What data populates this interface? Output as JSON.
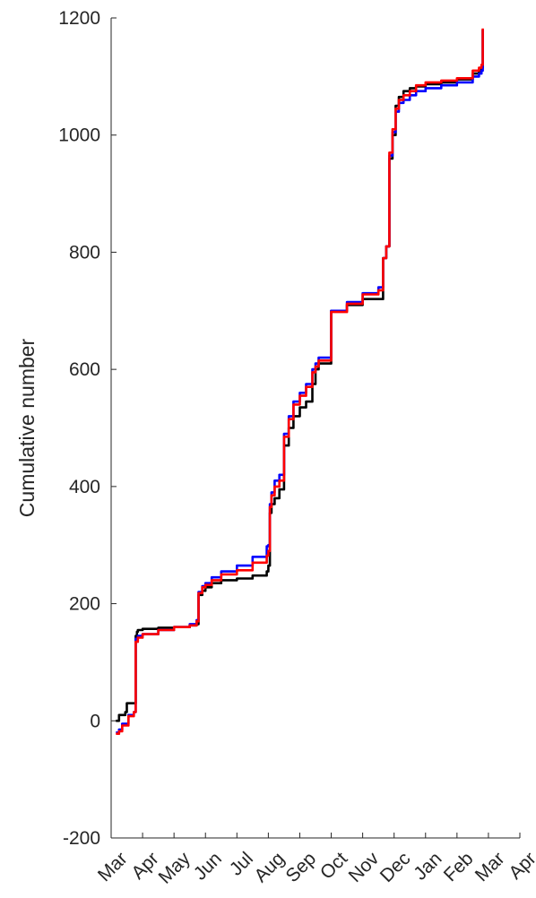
{
  "chart_data": {
    "type": "line",
    "title": "",
    "xlabel": "",
    "ylabel": "Cumulative number",
    "ylim": [
      -200,
      1200
    ],
    "yticks": [
      "-200",
      "0",
      "200",
      "400",
      "600",
      "800",
      "1000",
      "1200"
    ],
    "x_tick_labels": [
      "Mar",
      "Apr",
      "May",
      "Jun",
      "Jul",
      "Aug",
      "Sep",
      "Oct",
      "Nov",
      "Dec",
      "Jan",
      "Feb",
      "Mar",
      "Apr"
    ],
    "grid": false,
    "x_unit_note": "x values are month index (0 = Mar of first year, 13 = Apr of following year)",
    "series": [
      {
        "color": "#000000",
        "x": [
          0.15,
          0.25,
          0.45,
          0.5,
          0.6,
          0.72,
          0.78,
          0.82,
          0.85,
          1.0,
          1.5,
          2.0,
          2.5,
          2.72,
          2.78,
          2.9,
          3.0,
          3.2,
          3.5,
          4.0,
          4.5,
          4.95,
          5.0,
          5.05,
          5.1,
          5.2,
          5.35,
          5.5,
          5.65,
          5.8,
          6.0,
          6.2,
          6.4,
          6.5,
          6.6,
          7.0,
          7.5,
          8.0,
          8.5,
          8.65,
          8.75,
          8.85,
          8.95,
          9.05,
          9.15,
          9.3,
          9.5,
          9.7,
          10.0,
          10.5,
          11.0,
          11.5,
          11.7,
          11.78,
          11.82
        ],
        "y": [
          0,
          10,
          15,
          30,
          30,
          30,
          145,
          152,
          155,
          157,
          159,
          160,
          163,
          165,
          215,
          222,
          228,
          235,
          240,
          243,
          248,
          255,
          265,
          355,
          370,
          380,
          395,
          470,
          500,
          520,
          535,
          545,
          575,
          600,
          610,
          700,
          710,
          720,
          720,
          790,
          810,
          960,
          1000,
          1050,
          1065,
          1075,
          1080,
          1083,
          1087,
          1090,
          1095,
          1105,
          1110,
          1115,
          1180
        ]
      },
      {
        "color": "#0000ff",
        "x": [
          0.15,
          0.25,
          0.35,
          0.55,
          0.72,
          0.78,
          0.85,
          1.0,
          1.5,
          2.0,
          2.5,
          2.72,
          2.78,
          2.9,
          3.0,
          3.2,
          3.5,
          4.0,
          4.5,
          4.95,
          5.0,
          5.05,
          5.1,
          5.2,
          5.35,
          5.5,
          5.65,
          5.8,
          6.0,
          6.2,
          6.4,
          6.5,
          6.6,
          7.0,
          7.5,
          8.0,
          8.5,
          8.65,
          8.75,
          8.85,
          8.95,
          9.05,
          9.15,
          9.3,
          9.5,
          9.7,
          10.0,
          10.5,
          11.0,
          11.5,
          11.7,
          11.78,
          11.82
        ],
        "y": [
          -20,
          -15,
          -5,
          10,
          15,
          140,
          145,
          148,
          155,
          160,
          165,
          172,
          220,
          230,
          235,
          245,
          255,
          265,
          280,
          298,
          300,
          370,
          390,
          410,
          420,
          490,
          520,
          545,
          560,
          575,
          600,
          610,
          620,
          700,
          715,
          730,
          740,
          790,
          810,
          965,
          1005,
          1040,
          1055,
          1060,
          1068,
          1075,
          1080,
          1085,
          1090,
          1100,
          1105,
          1110,
          1180
        ]
      },
      {
        "color": "#ff0000",
        "x": [
          0.15,
          0.25,
          0.35,
          0.55,
          0.72,
          0.78,
          0.85,
          1.0,
          1.5,
          2.0,
          2.5,
          2.72,
          2.78,
          2.9,
          3.0,
          3.2,
          3.5,
          4.0,
          4.5,
          4.95,
          5.0,
          5.05,
          5.1,
          5.2,
          5.35,
          5.5,
          5.65,
          5.8,
          6.0,
          6.2,
          6.4,
          6.5,
          6.6,
          7.0,
          7.5,
          8.0,
          8.5,
          8.65,
          8.75,
          8.85,
          8.95,
          9.05,
          9.15,
          9.3,
          9.5,
          9.7,
          10.0,
          10.5,
          11.0,
          11.5,
          11.7,
          11.78,
          11.82
        ],
        "y": [
          -22,
          -18,
          -8,
          8,
          15,
          135,
          142,
          148,
          155,
          160,
          163,
          170,
          218,
          228,
          232,
          240,
          250,
          257,
          270,
          282,
          290,
          365,
          385,
          400,
          410,
          485,
          515,
          540,
          555,
          570,
          595,
          605,
          615,
          698,
          712,
          728,
          735,
          790,
          810,
          970,
          1010,
          1045,
          1060,
          1068,
          1075,
          1085,
          1090,
          1093,
          1097,
          1110,
          1115,
          1120,
          1182
        ]
      }
    ]
  }
}
